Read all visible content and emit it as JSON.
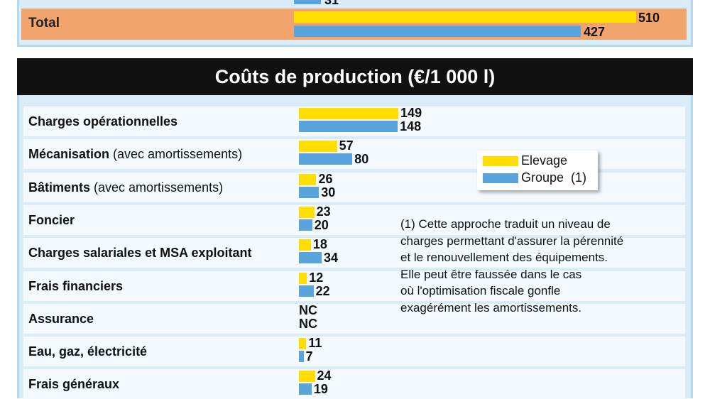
{
  "colors": {
    "elevage": "#ffde00",
    "groupe": "#5aa4dd",
    "total_row": "#f2a46d",
    "panel": "#d9ecf7"
  },
  "top_section": {
    "partial_value": "31",
    "total_label": "Total",
    "total_elevage": "510",
    "total_groupe": "427"
  },
  "chart_data": {
    "type": "bar",
    "orientation": "horizontal",
    "title": "Coûts de production (€/1 000 l)",
    "categories": [
      "Charges opérationnelles",
      "Mécanisation (avec amortissements)",
      "Bâtiments (avec amortissements)",
      "Foncier",
      "Charges salariales et MSA exploitant",
      "Frais financiers",
      "Assurance",
      "Eau, gaz, électricité",
      "Frais généraux"
    ],
    "series": [
      {
        "name": "Elevage",
        "values": [
          149,
          57,
          26,
          23,
          18,
          12,
          null,
          11,
          24
        ]
      },
      {
        "name": "Groupe  (1)",
        "values": [
          148,
          80,
          30,
          20,
          34,
          22,
          null,
          7,
          19
        ]
      }
    ],
    "value_labels": {
      "Elevage": [
        "149",
        "57",
        "26",
        "23",
        "18",
        "12",
        "NC",
        "11",
        "24"
      ],
      "Groupe": [
        "148",
        "80",
        "30",
        "20",
        "34",
        "22",
        "NC",
        "7",
        "19"
      ]
    },
    "legend": [
      "Elevage",
      "Groupe  (1)"
    ],
    "legend_position": "right"
  },
  "rows": [
    {
      "bold": "Charges opérationnelles",
      "normal": ""
    },
    {
      "bold": "Mécanisation",
      "normal": " (avec amortissements)"
    },
    {
      "bold": "Bâtiments",
      "normal": " (avec amortissements)"
    },
    {
      "bold": "Foncier",
      "normal": ""
    },
    {
      "bold": "Charges salariales et MSA exploitant",
      "normal": ""
    },
    {
      "bold": "Frais financiers",
      "normal": ""
    },
    {
      "bold": "Assurance",
      "normal": ""
    },
    {
      "bold": "Eau, gaz, électricité",
      "normal": ""
    },
    {
      "bold": "Frais généraux",
      "normal": ""
    }
  ],
  "footnote": [
    "(1) Cette approche traduit un niveau de",
    "charges permettant d'assurer la pérennité",
    "et le renouvellement des équipements.",
    "Elle peut être faussée dans le cas",
    "où l'optimisation fiscale gonfle",
    "exagérément les amortissements."
  ]
}
